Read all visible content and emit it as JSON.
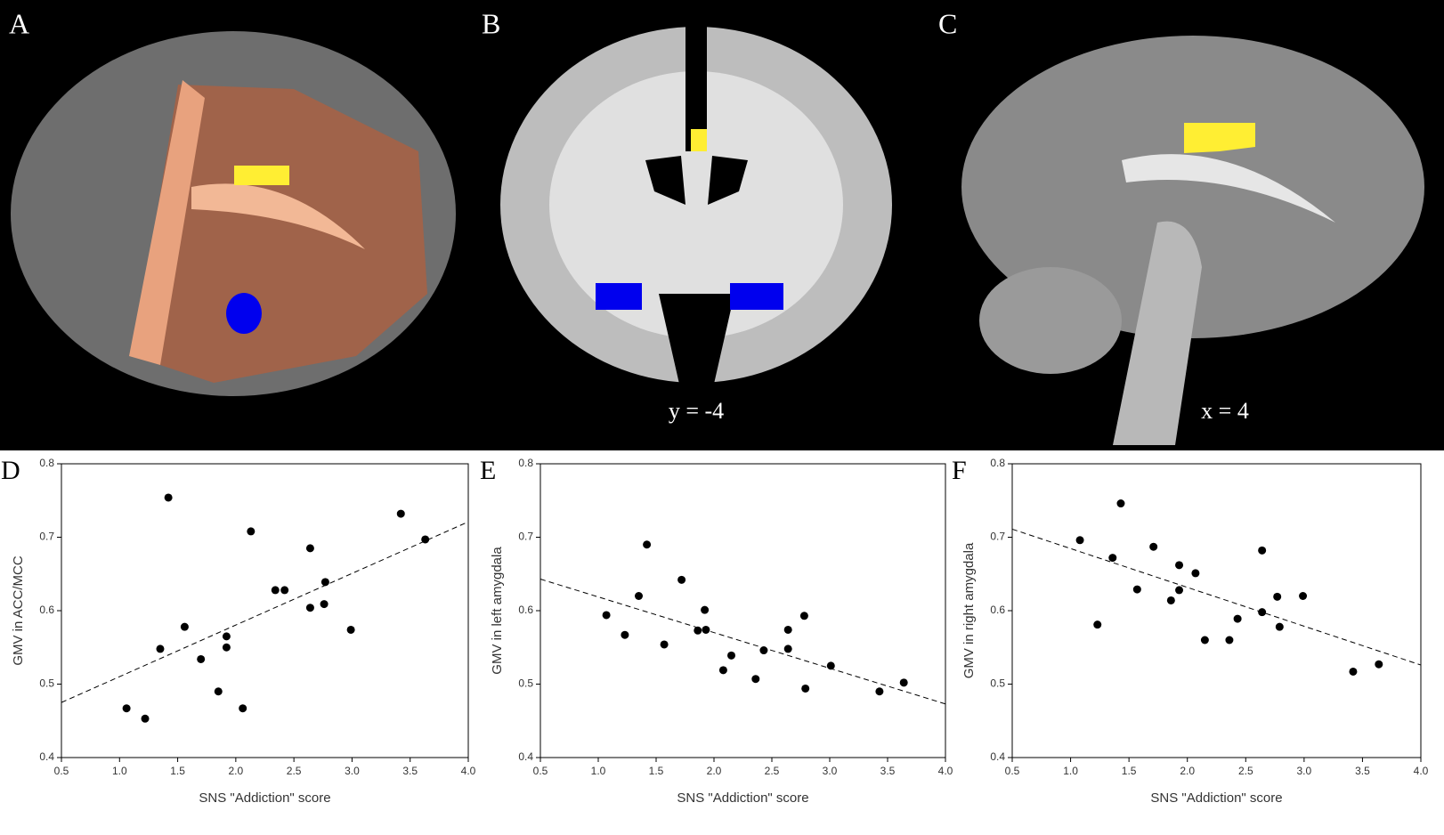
{
  "panels": [
    {
      "label": "A"
    },
    {
      "label": "B",
      "annotation": "y = -4"
    },
    {
      "label": "C",
      "annotation": "x = 4"
    }
  ],
  "chart_data": [
    {
      "type": "scatter",
      "panel_label": "D",
      "xlabel": "SNS \"Addiction\" score",
      "ylabel": "GMV in ACC/MCC",
      "xlim": [
        0.5,
        4.0
      ],
      "ylim": [
        0.4,
        0.8
      ],
      "xticks": [
        0.5,
        {
          "value": 1,
          "label": "1.0"
        },
        1.5,
        {
          "value": 2,
          "label": "2.0"
        },
        2.5,
        {
          "value": 3,
          "label": "3.0"
        },
        3.5,
        {
          "value": 4,
          "label": "4.0"
        }
      ],
      "yticks": [
        0.4,
        0.5,
        0.6,
        0.7,
        0.8
      ],
      "x": [
        1.42,
        1.06,
        1.22,
        1.35,
        1.56,
        1.7,
        1.85,
        1.92,
        1.92,
        2.06,
        2.13,
        2.34,
        2.42,
        2.64,
        2.64,
        2.76,
        2.77,
        2.99,
        3.42,
        3.63
      ],
      "series": [
        {
          "color": "#000000",
          "values": [
            0.754,
            0.467,
            0.453,
            0.548,
            0.578,
            0.534,
            0.49,
            0.565,
            0.55,
            0.467,
            0.708,
            0.628,
            0.628,
            0.685,
            0.604,
            0.609,
            0.639,
            0.574,
            0.732,
            0.697
          ]
        }
      ],
      "trend_line": {
        "x": [
          0.5,
          4.0
        ],
        "y": [
          0.475,
          0.721
        ]
      }
    },
    {
      "type": "scatter",
      "panel_label": "E",
      "xlabel": "SNS \"Addiction\" score",
      "ylabel": "GMV in left amygdala",
      "xlim": [
        0.5,
        4.0
      ],
      "ylim": [
        0.4,
        0.8
      ],
      "xticks": [
        0.5,
        {
          "value": 1,
          "label": "1.0"
        },
        1.5,
        {
          "value": 2,
          "label": "2.0"
        },
        2.5,
        {
          "value": 3,
          "label": "3.0"
        },
        3.5,
        {
          "value": 4,
          "label": "4.0"
        }
      ],
      "yticks": [
        0.4,
        0.5,
        0.6,
        0.7,
        0.8
      ],
      "x": [
        1.07,
        1.23,
        1.42,
        1.35,
        1.57,
        1.72,
        1.86,
        1.92,
        1.93,
        2.15,
        2.08,
        2.36,
        2.43,
        2.64,
        2.64,
        2.78,
        2.79,
        3.01,
        3.43,
        3.64
      ],
      "series": [
        {
          "color": "#000000",
          "values": [
            0.594,
            0.567,
            0.69,
            0.62,
            0.554,
            0.642,
            0.573,
            0.601,
            0.574,
            0.539,
            0.519,
            0.507,
            0.546,
            0.574,
            0.548,
            0.593,
            0.494,
            0.525,
            0.49,
            0.502
          ]
        }
      ],
      "trend_line": {
        "x": [
          0.5,
          4.0
        ],
        "y": [
          0.643,
          0.473
        ]
      }
    },
    {
      "type": "scatter",
      "panel_label": "F",
      "xlabel": "SNS \"Addiction\" score",
      "ylabel": "GMV in right amygdala",
      "xlim": [
        0.5,
        4.0
      ],
      "ylim": [
        0.4,
        0.8
      ],
      "xticks": [
        0.5,
        {
          "value": 1,
          "label": "1.0"
        },
        1.5,
        {
          "value": 2,
          "label": "2.0"
        },
        2.5,
        {
          "value": 3,
          "label": "3.0"
        },
        3.5,
        {
          "value": 4,
          "label": "4.0"
        }
      ],
      "yticks": [
        0.4,
        0.5,
        0.6,
        0.7,
        0.8
      ],
      "x": [
        1.08,
        1.23,
        1.43,
        1.36,
        1.57,
        1.71,
        1.86,
        1.93,
        1.93,
        2.07,
        2.15,
        2.36,
        2.43,
        2.64,
        2.64,
        2.77,
        2.79,
        2.99,
        3.42,
        3.64
      ],
      "series": [
        {
          "color": "#000000",
          "values": [
            0.696,
            0.581,
            0.746,
            0.672,
            0.629,
            0.687,
            0.614,
            0.662,
            0.628,
            0.651,
            0.56,
            0.56,
            0.589,
            0.682,
            0.598,
            0.619,
            0.578,
            0.62,
            0.517,
            0.527
          ]
        }
      ],
      "trend_line": {
        "x": [
          0.5,
          4.0
        ],
        "y": [
          0.711,
          0.526
        ]
      }
    }
  ]
}
